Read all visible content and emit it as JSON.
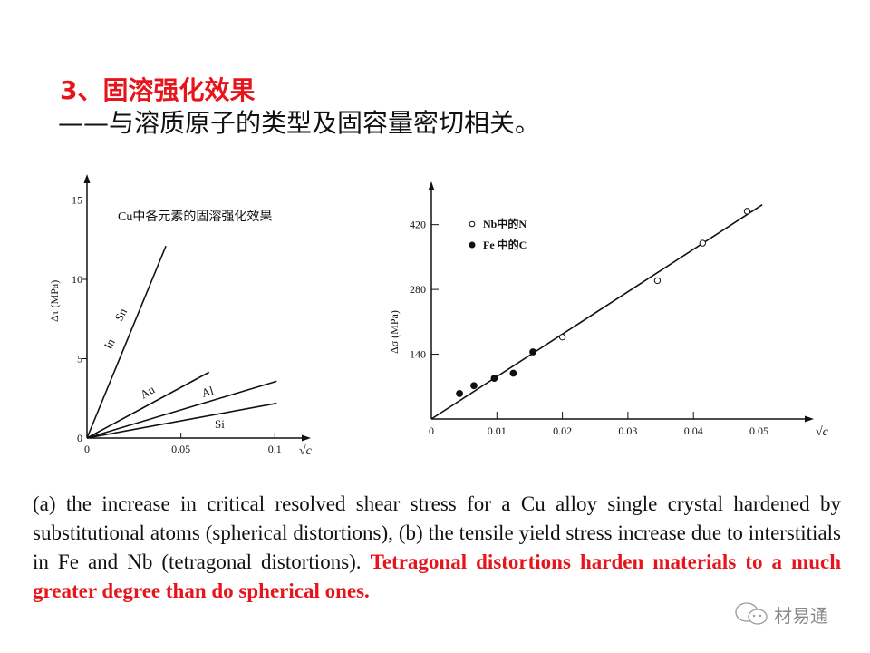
{
  "header": {
    "title": "3、固溶强化效果",
    "subtitle": "——与溶质原子的类型及固容量密切相关。"
  },
  "chart_data": [
    {
      "type": "line",
      "title": "Cu中各元素的固溶强化效果",
      "xlabel": "√c",
      "ylabel": "Δτ (MPa)",
      "xlim": [
        0,
        0.1
      ],
      "ylim": [
        0,
        15
      ],
      "xticks": [
        "0",
        "0.05",
        "0.1"
      ],
      "yticks": [
        "0",
        "5",
        "10",
        "15"
      ],
      "grid": false,
      "series": [
        {
          "name": "In Sn",
          "labels": [
            "In",
            "Sn"
          ],
          "x": [
            0,
            0.042
          ],
          "y": [
            0,
            12.1
          ]
        },
        {
          "name": "Au",
          "labels": [
            "Au"
          ],
          "x": [
            0,
            0.065
          ],
          "y": [
            0,
            4.15
          ]
        },
        {
          "name": "Al",
          "labels": [
            "Al"
          ],
          "x": [
            0,
            0.101
          ],
          "y": [
            0,
            3.58
          ]
        },
        {
          "name": "Si",
          "labels": [
            "Si"
          ],
          "x": [
            0,
            0.101
          ],
          "y": [
            0,
            2.19
          ]
        }
      ]
    },
    {
      "type": "scatter",
      "xlabel": "√c",
      "ylabel": "Δσ (MPa)",
      "xlim": [
        0,
        0.05
      ],
      "ylim": [
        0,
        420
      ],
      "xticks": [
        "0",
        "0.01",
        "0.02",
        "0.03",
        "0.04",
        "0.05"
      ],
      "yticks": [
        "140",
        "280",
        "420"
      ],
      "grid": false,
      "legend_position": "top-left",
      "series": [
        {
          "name": "Nb中的N",
          "marker": "open-circle",
          "x": [
            0.02,
            0.0345,
            0.0414,
            0.0482
          ],
          "y": [
            177,
            299,
            380,
            449
          ]
        },
        {
          "name": "Fe 中的C",
          "marker": "filled-circle",
          "x": [
            0.0043,
            0.0065,
            0.0096,
            0.0125,
            0.0155
          ],
          "y": [
            55,
            72,
            88,
            99,
            145
          ]
        }
      ],
      "fit_line": {
        "x": [
          0,
          0.0505
        ],
        "y": [
          0,
          463
        ]
      }
    }
  ],
  "caption": {
    "text": "(a) the increase in critical resolved shear stress for a Cu alloy single crystal hardened by substitutional atoms (spherical distortions), (b) the tensile yield stress increase due to interstitials in Fe and Nb (tetragonal distortions). ",
    "highlight": "Tetragonal distortions harden materials to a much greater degree than do spherical ones.",
    "highlight_color": "#e8141b"
  },
  "watermark": {
    "text": "材易通",
    "icon": "wechat-icon"
  }
}
